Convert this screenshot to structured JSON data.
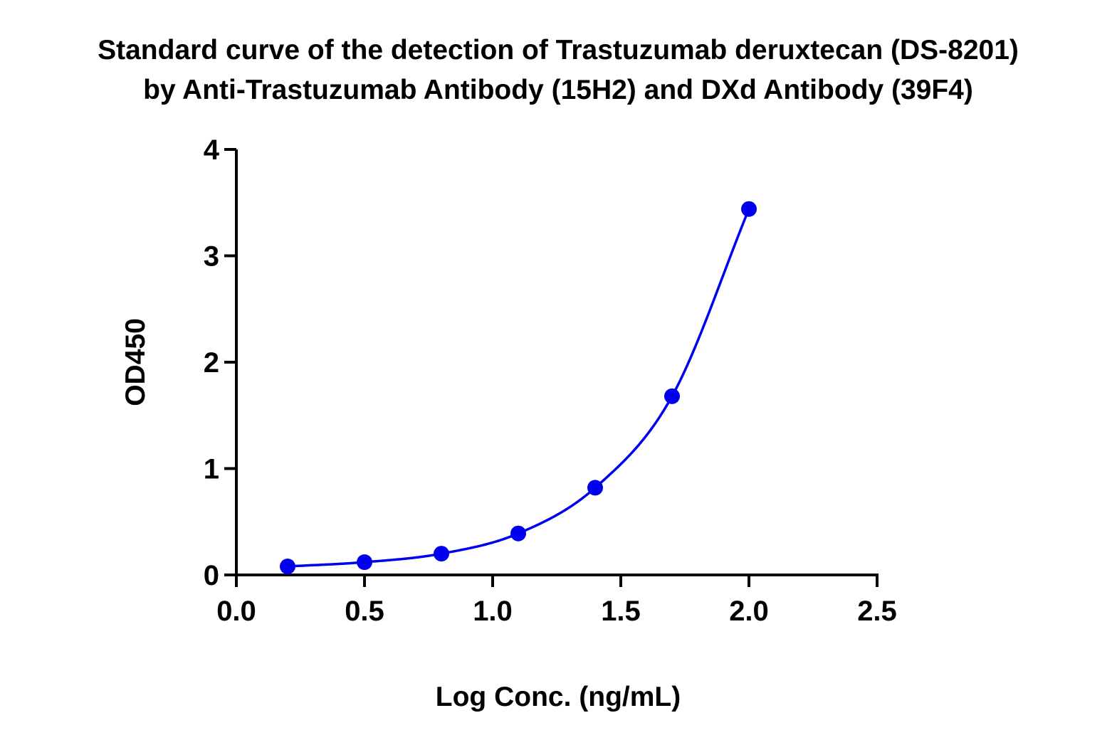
{
  "chart_data": {
    "type": "scatter",
    "title_lines": [
      "Standard curve of the detection of Trastuzumab deruxtecan (DS-8201)",
      "by Anti-Trastuzumab Antibody (15H2) and DXd Antibody (39F4)"
    ],
    "xlabel": "Log Conc. (ng/mL)",
    "ylabel": "OD450",
    "xlim": [
      0.0,
      2.5
    ],
    "ylim": [
      0,
      4
    ],
    "x_ticks": [
      "0.0",
      "0.5",
      "1.0",
      "1.5",
      "2.0",
      "2.5"
    ],
    "y_ticks": [
      "0",
      "1",
      "2",
      "3",
      "4"
    ],
    "grid": false,
    "legend": "none",
    "color": "#0000ee",
    "series": [
      {
        "x": [
          0.2,
          0.5,
          0.8,
          1.1,
          1.4,
          1.7,
          2.0
        ],
        "y": [
          0.08,
          0.12,
          0.2,
          0.39,
          0.82,
          1.68,
          3.44
        ],
        "fit": "smooth curve"
      }
    ]
  }
}
